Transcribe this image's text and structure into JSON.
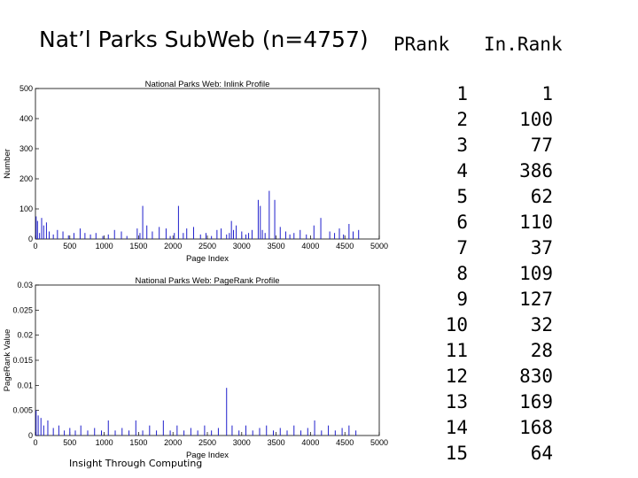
{
  "title": "Nat’l Parks SubWeb (n=4757)",
  "footer": "Insight Through Computing",
  "table": {
    "headers": [
      "PRank",
      "In.Rank"
    ],
    "rows": [
      [
        "1",
        "1"
      ],
      [
        "2",
        "100"
      ],
      [
        "3",
        "77"
      ],
      [
        "4",
        "386"
      ],
      [
        "5",
        "62"
      ],
      [
        "6",
        "110"
      ],
      [
        "7",
        "37"
      ],
      [
        "8",
        "109"
      ],
      [
        "9",
        "127"
      ],
      [
        "10",
        "32"
      ],
      [
        "11",
        "28"
      ],
      [
        "12",
        "830"
      ],
      [
        "13",
        "169"
      ],
      [
        "14",
        "168"
      ],
      [
        "15",
        "64"
      ]
    ]
  },
  "chart_data": [
    {
      "type": "bar",
      "title": "National Parks Web: Inlink Profile",
      "xlabel": "Page Index",
      "ylabel": "Number",
      "xlim": [
        0,
        5000
      ],
      "ylim": [
        0,
        500
      ],
      "xticks": [
        0,
        500,
        1000,
        1500,
        2000,
        2500,
        3000,
        3500,
        4000,
        4500,
        5000
      ],
      "yticks": [
        0,
        100,
        200,
        300,
        400,
        500
      ],
      "color": "#1f1fcc",
      "series": [
        {
          "x": [
            10,
            30,
            60,
            90,
            120,
            160,
            200,
            260,
            320,
            400,
            480,
            560,
            650,
            720,
            800,
            880,
            980,
            1060,
            1150,
            1250,
            1330,
            1480,
            1520,
            1560,
            1620,
            1700,
            1800,
            1900,
            1960,
            2020,
            2080,
            2150,
            2200,
            2300,
            2400,
            2480,
            2560,
            2640,
            2700,
            2780,
            2820,
            2850,
            2880,
            2920,
            3000,
            3060,
            3100,
            3150,
            3240,
            3270,
            3300,
            3340,
            3400,
            3480,
            3560,
            3640,
            3700,
            3760,
            3850,
            3940,
            4050,
            4150,
            4280,
            4350,
            4420,
            4480,
            4560,
            4620,
            4700
          ],
          "values": [
            75,
            60,
            20,
            70,
            45,
            55,
            25,
            15,
            30,
            25,
            12,
            20,
            35,
            20,
            15,
            20,
            10,
            15,
            30,
            25,
            10,
            35,
            20,
            110,
            45,
            25,
            40,
            35,
            10,
            20,
            110,
            20,
            35,
            40,
            15,
            20,
            10,
            30,
            35,
            15,
            20,
            60,
            30,
            45,
            25,
            15,
            20,
            30,
            130,
            110,
            30,
            20,
            160,
            130,
            40,
            25,
            15,
            20,
            30,
            15,
            45,
            70,
            25,
            20,
            35,
            15,
            50,
            25,
            30
          ]
        }
      ]
    },
    {
      "type": "bar",
      "title": "National Parks Web:  PageRank Profile",
      "xlabel": "Page Index",
      "ylabel": "PageRank Value",
      "xlim": [
        0,
        5000
      ],
      "ylim": [
        0,
        0.03
      ],
      "xticks": [
        0,
        500,
        1000,
        1500,
        2000,
        2500,
        3000,
        3500,
        4000,
        4500,
        5000
      ],
      "yticks": [
        0,
        0.005,
        0.01,
        0.015,
        0.02,
        0.025,
        0.03
      ],
      "color": "#1f1fcc",
      "series": [
        {
          "x": [
            10,
            40,
            80,
            120,
            180,
            260,
            340,
            420,
            500,
            580,
            660,
            760,
            860,
            960,
            1060,
            1160,
            1260,
            1360,
            1460,
            1560,
            1660,
            1760,
            1860,
            1960,
            2060,
            2160,
            2260,
            2360,
            2460,
            2560,
            2660,
            2780,
            2860,
            2960,
            3060,
            3160,
            3260,
            3360,
            3460,
            3560,
            3660,
            3760,
            3860,
            3960,
            4060,
            4160,
            4260,
            4360,
            4460,
            4560,
            4660
          ],
          "values": [
            0.005,
            0.004,
            0.0035,
            0.002,
            0.003,
            0.0015,
            0.002,
            0.001,
            0.0015,
            0.001,
            0.002,
            0.001,
            0.0015,
            0.001,
            0.003,
            0.001,
            0.0015,
            0.001,
            0.003,
            0.001,
            0.002,
            0.001,
            0.003,
            0.001,
            0.002,
            0.001,
            0.0015,
            0.001,
            0.002,
            0.001,
            0.0015,
            0.0095,
            0.002,
            0.001,
            0.002,
            0.001,
            0.0015,
            0.002,
            0.001,
            0.0015,
            0.001,
            0.002,
            0.001,
            0.0015,
            0.003,
            0.001,
            0.002,
            0.001,
            0.0015,
            0.002,
            0.001
          ]
        }
      ]
    }
  ]
}
